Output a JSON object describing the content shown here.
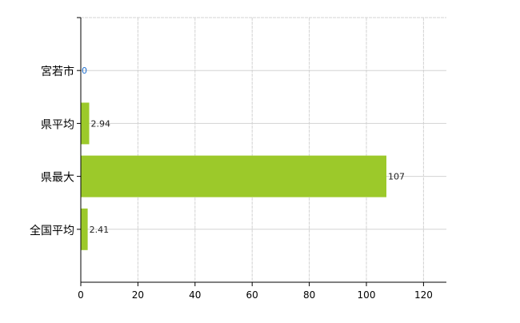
{
  "chart_data": {
    "type": "bar",
    "orientation": "horizontal",
    "categories": [
      "宮若市",
      "県平均",
      "県最大",
      "全国平均"
    ],
    "values": [
      0,
      2.94,
      107,
      2.41
    ],
    "data_labels": [
      "0",
      "2.94",
      "107",
      "2.41"
    ],
    "xlim": [
      0,
      128
    ],
    "xticks": [
      0,
      20,
      40,
      60,
      80,
      100,
      120
    ],
    "xtick_labels": [
      "0",
      "20",
      "40",
      "60",
      "80",
      "100",
      "120"
    ],
    "title": "",
    "xlabel": "",
    "ylabel": "",
    "grid": true,
    "colors": {
      "bar": "#9cc92a",
      "grid": "#d3d3d3",
      "axis": "#000000",
      "zero_label": "#1e6fd0"
    }
  }
}
